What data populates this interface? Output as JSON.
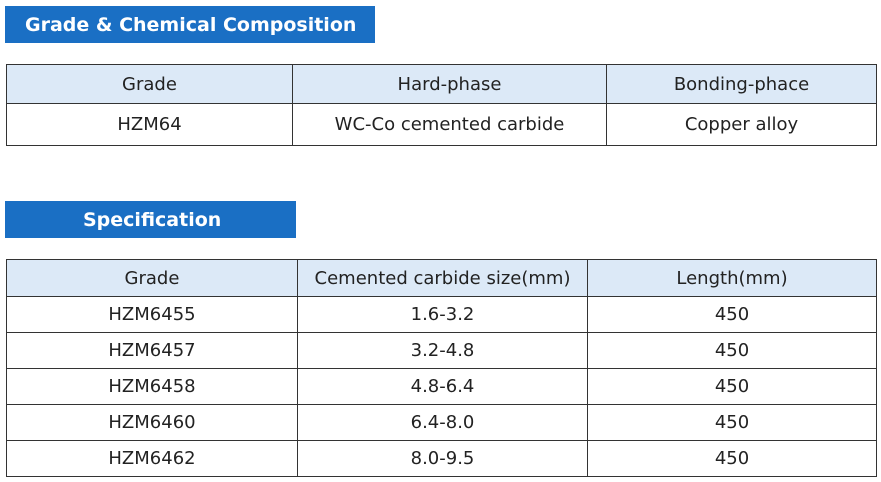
{
  "sections": [
    {
      "title": "Grade & Chemical Composition",
      "table": {
        "header": [
          "Grade",
          "Hard-phase",
          "Bonding-phace"
        ],
        "rows": [
          [
            "HZM64",
            "WC-Co cemented carbide",
            "Copper alloy"
          ]
        ]
      }
    },
    {
      "title": "Specification",
      "table": {
        "header": [
          "Grade",
          "Cemented carbide size(mm)",
          "Length(mm)"
        ],
        "rows": [
          [
            "HZM6455",
            "1.6-3.2",
            "450"
          ],
          [
            "HZM6457",
            "3.2-4.8",
            "450"
          ],
          [
            "HZM6458",
            "4.8-6.4",
            "450"
          ],
          [
            "HZM6460",
            "6.4-8.0",
            "450"
          ],
          [
            "HZM6462",
            "8.0-9.5",
            "450"
          ]
        ]
      }
    }
  ]
}
